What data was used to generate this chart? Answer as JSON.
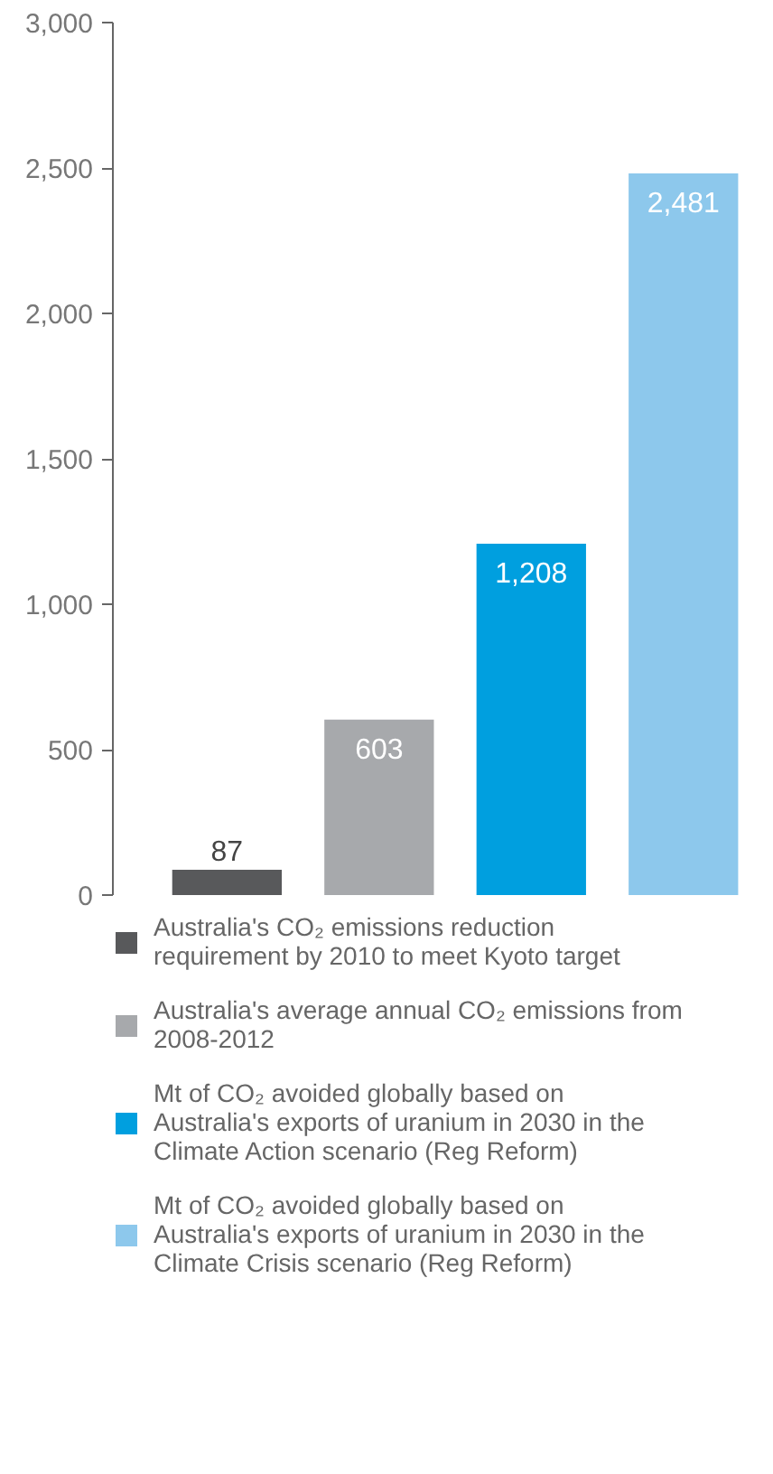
{
  "chart_data": {
    "type": "bar",
    "categories": [
      null,
      null,
      null,
      null
    ],
    "stacked": true,
    "series": [
      {
        "name": "Australia's CO₂ emissions reduction requirement by 2010 to meet Kyoto target",
        "color": "#58595b",
        "values": [
          87,
          null,
          null,
          null
        ],
        "value_labels": [
          "87",
          null,
          null,
          null
        ]
      },
      {
        "name": "Australia's average annual CO₂ emissions from 2008-2012",
        "color": "#a7a9ac",
        "values": [
          null,
          603,
          null,
          null
        ],
        "value_labels": [
          null,
          "603",
          null,
          null
        ]
      },
      {
        "name": "Mt of CO₂ avoided globally based on Australia's exports of uranium in 2030 in the Climate Action scenario (Reg Reform)",
        "color": "#009fdf",
        "values": [
          null,
          null,
          1208,
          null
        ],
        "value_labels": [
          null,
          null,
          "1,208",
          null
        ]
      },
      {
        "name": "Mt of CO₂ avoided globally based on Australia's exports of uranium in 2030 in the Climate Crisis scenario (Reg Reform)",
        "color": "#8dc8ec",
        "values": [
          null,
          null,
          null,
          2481
        ],
        "value_labels": [
          null,
          null,
          null,
          "2,481"
        ]
      }
    ],
    "ylim": [
      0,
      3000
    ],
    "yticks": [
      {
        "value": 0,
        "label": "0"
      },
      {
        "value": 500,
        "label": "500"
      },
      {
        "value": 1000,
        "label": "1,000"
      },
      {
        "value": 1500,
        "label": "1,500"
      },
      {
        "value": 2000,
        "label": "2,000"
      },
      {
        "value": 2500,
        "label": "2,500"
      },
      {
        "value": 3000,
        "label": "3,000"
      }
    ],
    "tick_labels": "y",
    "grid": false,
    "legend": "bottom"
  }
}
